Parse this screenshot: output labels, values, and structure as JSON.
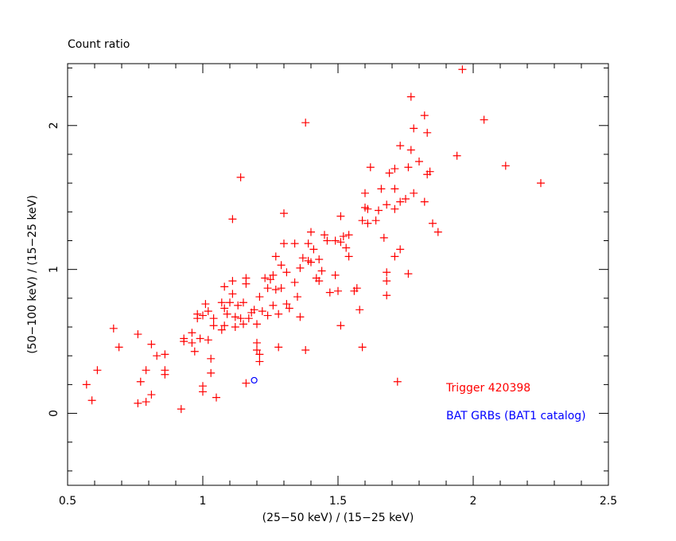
{
  "chart_data": {
    "type": "scatter",
    "title": "Count ratio",
    "xlabel": "(25−50 keV) / (15−25 keV)",
    "ylabel": "(50−100 keV) / (15−25 keV)",
    "xlim": [
      0.5,
      2.5
    ],
    "ylim": [
      -0.5,
      2.43
    ],
    "x_ticks": [
      0.5,
      1,
      1.5,
      2,
      2.5
    ],
    "x_tick_labels": [
      "0.5",
      "1",
      "1.5",
      "2",
      "2.5"
    ],
    "y_ticks": [
      0,
      1,
      2
    ],
    "y_tick_labels": [
      "0",
      "1",
      "2"
    ],
    "grid": false,
    "legend_placement": "bottom-right",
    "series": [
      {
        "name": "Trigger 420398",
        "color": "#ff0000",
        "marker": "plus",
        "points": [
          [
            0.57,
            0.2
          ],
          [
            0.59,
            0.09
          ],
          [
            0.61,
            0.3
          ],
          [
            0.67,
            0.59
          ],
          [
            0.69,
            0.46
          ],
          [
            0.76,
            0.55
          ],
          [
            0.76,
            0.07
          ],
          [
            0.77,
            0.22
          ],
          [
            0.79,
            0.3
          ],
          [
            0.79,
            0.08
          ],
          [
            0.81,
            0.48
          ],
          [
            0.81,
            0.13
          ],
          [
            0.83,
            0.4
          ],
          [
            0.86,
            0.27
          ],
          [
            0.86,
            0.3
          ],
          [
            0.86,
            0.41
          ],
          [
            0.92,
            0.03
          ],
          [
            0.93,
            0.5
          ],
          [
            0.93,
            0.52
          ],
          [
            0.96,
            0.49
          ],
          [
            0.96,
            0.56
          ],
          [
            0.97,
            0.43
          ],
          [
            0.98,
            0.66
          ],
          [
            1.0,
            0.19
          ],
          [
            1.0,
            0.15
          ],
          [
            1.01,
            0.76
          ],
          [
            1.02,
            0.51
          ],
          [
            1.03,
            0.28
          ],
          [
            1.03,
            0.38
          ],
          [
            1.04,
            0.66
          ],
          [
            1.04,
            0.61
          ],
          [
            1.05,
            0.11
          ],
          [
            1.07,
            0.77
          ],
          [
            1.08,
            0.73
          ],
          [
            1.08,
            0.88
          ],
          [
            1.09,
            0.69
          ],
          [
            1.1,
            0.77
          ],
          [
            1.11,
            0.83
          ],
          [
            1.11,
            0.92
          ],
          [
            1.12,
            0.67
          ],
          [
            1.12,
            0.6
          ],
          [
            1.13,
            0.75
          ],
          [
            1.14,
            0.66
          ],
          [
            1.15,
            0.62
          ],
          [
            1.15,
            0.77
          ],
          [
            1.16,
            0.9
          ],
          [
            1.16,
            0.94
          ],
          [
            1.17,
            0.66
          ],
          [
            1.18,
            0.7
          ],
          [
            1.19,
            0.72
          ],
          [
            1.16,
            0.21
          ],
          [
            1.2,
            0.62
          ],
          [
            1.2,
            0.44
          ],
          [
            1.21,
            0.36
          ],
          [
            1.21,
            0.41
          ],
          [
            1.2,
            0.49
          ],
          [
            1.21,
            0.81
          ],
          [
            1.22,
            0.71
          ],
          [
            1.23,
            0.94
          ],
          [
            1.24,
            0.68
          ],
          [
            1.24,
            0.87
          ],
          [
            1.25,
            0.93
          ],
          [
            1.26,
            0.75
          ],
          [
            1.26,
            0.96
          ],
          [
            1.27,
            1.09
          ],
          [
            1.27,
            0.86
          ],
          [
            1.28,
            0.69
          ],
          [
            1.28,
            0.46
          ],
          [
            1.29,
            1.03
          ],
          [
            1.29,
            0.87
          ],
          [
            1.3,
            1.39
          ],
          [
            1.3,
            1.18
          ],
          [
            1.31,
            0.98
          ],
          [
            1.31,
            0.76
          ],
          [
            1.32,
            0.73
          ],
          [
            1.34,
            1.18
          ],
          [
            1.34,
            0.91
          ],
          [
            1.35,
            0.81
          ],
          [
            1.36,
            0.67
          ],
          [
            1.36,
            1.01
          ],
          [
            1.37,
            1.08
          ],
          [
            1.38,
            2.02
          ],
          [
            1.38,
            0.44
          ],
          [
            1.39,
            1.06
          ],
          [
            1.39,
            1.18
          ],
          [
            1.4,
            1.26
          ],
          [
            1.4,
            1.05
          ],
          [
            1.41,
            1.14
          ],
          [
            1.42,
            0.94
          ],
          [
            1.43,
            0.92
          ],
          [
            1.43,
            1.07
          ],
          [
            1.44,
            0.99
          ],
          [
            1.45,
            1.24
          ],
          [
            1.46,
            1.2
          ],
          [
            1.47,
            0.84
          ],
          [
            1.49,
            1.2
          ],
          [
            1.49,
            0.96
          ],
          [
            1.5,
            0.85
          ],
          [
            1.51,
            0.61
          ],
          [
            1.51,
            1.19
          ],
          [
            1.51,
            1.37
          ],
          [
            1.52,
            1.23
          ],
          [
            1.53,
            1.15
          ],
          [
            1.54,
            1.09
          ],
          [
            1.54,
            1.24
          ],
          [
            1.56,
            0.85
          ],
          [
            1.58,
            0.72
          ],
          [
            1.59,
            1.34
          ],
          [
            1.6,
            1.43
          ],
          [
            1.6,
            1.53
          ],
          [
            1.61,
            1.42
          ],
          [
            1.62,
            1.71
          ],
          [
            1.61,
            1.32
          ],
          [
            1.64,
            1.34
          ],
          [
            1.65,
            1.41
          ],
          [
            1.66,
            1.56
          ],
          [
            1.67,
            1.22
          ],
          [
            1.68,
            1.45
          ],
          [
            1.71,
            1.56
          ],
          [
            1.68,
            0.98
          ],
          [
            1.68,
            0.92
          ],
          [
            1.68,
            0.82
          ],
          [
            1.71,
            1.09
          ],
          [
            1.73,
            1.14
          ],
          [
            1.76,
            0.97
          ],
          [
            1.69,
            1.67
          ],
          [
            1.71,
            1.7
          ],
          [
            1.71,
            1.42
          ],
          [
            1.73,
            1.47
          ],
          [
            1.75,
            1.49
          ],
          [
            1.76,
            1.71
          ],
          [
            1.77,
            1.83
          ],
          [
            1.78,
            1.53
          ],
          [
            1.8,
            1.75
          ],
          [
            1.73,
            1.86
          ],
          [
            1.82,
            2.07
          ],
          [
            1.83,
            1.95
          ],
          [
            1.84,
            1.68
          ],
          [
            1.83,
            1.66
          ],
          [
            1.85,
            1.32
          ],
          [
            1.77,
            2.2
          ],
          [
            1.78,
            1.98
          ],
          [
            1.87,
            1.26
          ],
          [
            1.82,
            1.47
          ],
          [
            1.96,
            2.39
          ],
          [
            1.94,
            1.79
          ],
          [
            2.04,
            2.04
          ],
          [
            2.12,
            1.72
          ],
          [
            2.25,
            1.6
          ],
          [
            1.72,
            0.22
          ],
          [
            1.59,
            0.46
          ],
          [
            1.57,
            0.87
          ],
          [
            1.14,
            1.64
          ],
          [
            1.11,
            1.35
          ],
          [
            1.07,
            0.58
          ],
          [
            1.08,
            0.61
          ],
          [
            1.02,
            0.71
          ],
          [
            1.0,
            0.68
          ],
          [
            0.99,
            0.52
          ],
          [
            0.98,
            0.69
          ]
        ]
      },
      {
        "name": "BAT GRBs (BAT1 catalog)",
        "color": "#0000ff",
        "marker": "circle",
        "points": [
          [
            1.19,
            0.23
          ]
        ]
      }
    ]
  }
}
